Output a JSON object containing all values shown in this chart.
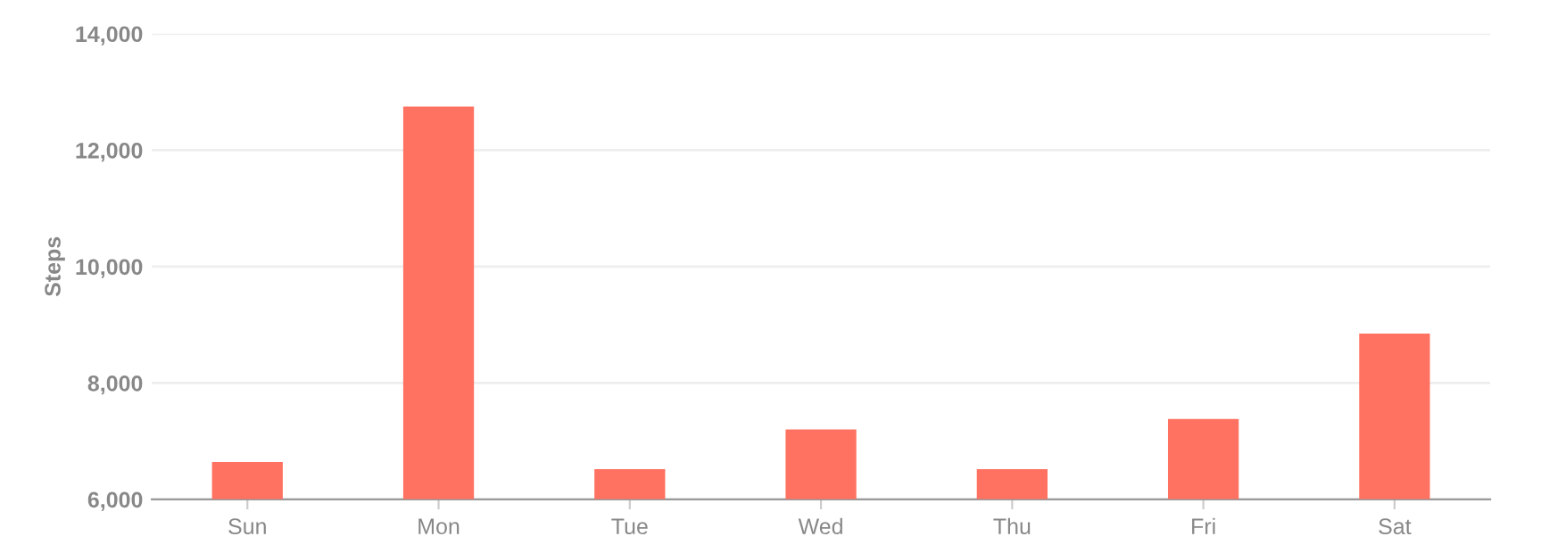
{
  "chart_data": {
    "type": "bar",
    "ylabel": "Steps",
    "categories": [
      "Sun",
      "Mon",
      "Tue",
      "Wed",
      "Thu",
      "Fri",
      "Sat"
    ],
    "values": [
      6640,
      12750,
      6520,
      7200,
      6520,
      7380,
      8850
    ],
    "color": "#ff7261",
    "ylim": [
      6000,
      14000
    ],
    "yticks": [
      {
        "value": 6000,
        "label": "6,000"
      },
      {
        "value": 8000,
        "label": "8,000"
      },
      {
        "value": 10000,
        "label": "10,000"
      },
      {
        "value": 12000,
        "label": "12,000"
      },
      {
        "value": 14000,
        "label": "14,000"
      }
    ],
    "grid": "y"
  }
}
